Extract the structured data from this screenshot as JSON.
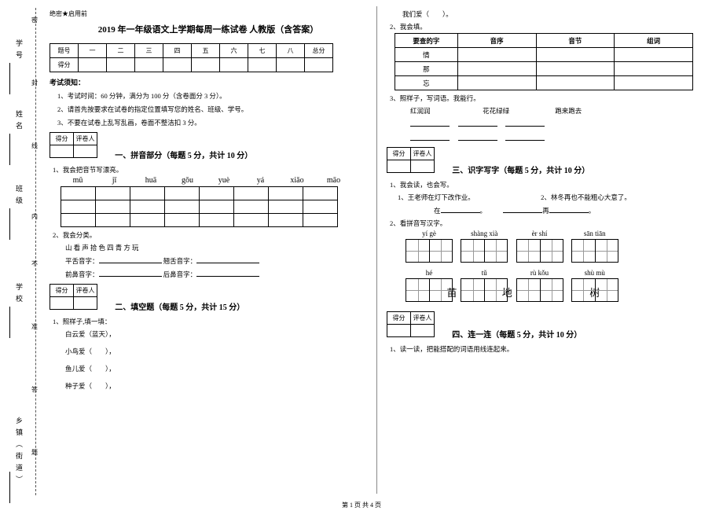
{
  "side": {
    "labels": [
      "学号",
      "姓名",
      "班级",
      "学校",
      "乡镇（街道）"
    ],
    "markers": [
      "密",
      "封",
      "线",
      "内",
      "不",
      "准",
      "答",
      "题"
    ]
  },
  "header_small": "绝密★启用前",
  "title": "2019 年一年级语文上学期每周一练试卷 人教版（含答案）",
  "score_table": {
    "row1": [
      "题号",
      "一",
      "二",
      "三",
      "四",
      "五",
      "六",
      "七",
      "八",
      "总分"
    ],
    "row2_label": "得分"
  },
  "notice_head": "考试须知：",
  "rules": [
    "1、考试时间：60 分钟，满分为 100 分（含卷面分 3 分）。",
    "2、请首先按要求在试卷的指定位置填写您的姓名、班级、学号。",
    "3、不要在试卷上乱写乱画，卷面不整洁扣 3 分。"
  ],
  "score_box_labels": [
    "得分",
    "评卷人"
  ],
  "sec1": {
    "title": "一、拼音部分（每题 5 分，共计 10 分）",
    "q1": "1、我会把音节写漂亮。",
    "pinyin": [
      "mǔ",
      "jī",
      "huā",
      "gǒu",
      "yuè",
      "yá",
      "xiǎo",
      "māo"
    ],
    "q2": "2、我会分类。",
    "q2_lines": [
      {
        "a": "山 看 声 拾 色 四 青 方 玩",
        "b": ""
      },
      {
        "a": "平舌音字：",
        "b": "翘舌音字："
      },
      {
        "a": "前鼻音字：",
        "b": "后鼻音字："
      }
    ]
  },
  "sec2": {
    "title": "二、填空题（每题 5 分，共计 15 分）",
    "q1": "1、照样子,填一填：",
    "items": [
      "白云爱（蓝天），",
      "小鸟爱（　　），",
      "鱼儿爱（　　），",
      "种子爱（　　），"
    ]
  },
  "sec2b": {
    "top1": "我们爱（　　）。",
    "top2": "2、我会填。",
    "table_head": [
      "要查的字",
      "音序",
      "音节",
      "组词"
    ],
    "table_rows": [
      "情",
      "那",
      "忘"
    ],
    "q3": "3、照样子，写词语。我能行。",
    "ex_row": [
      "红润润",
      "花花绿绿",
      "跑来跑去"
    ]
  },
  "sec3": {
    "title": "三、识字写字（每题 5 分，共计 10 分）",
    "q1": "1、我会读，也会写。",
    "line1a": "1、王老师在灯下改作业。",
    "line1b": "2、林冬再也不能粗心大意了。",
    "fill_a": "在",
    "fill_b": "再",
    "q2": "2、看拼音写汉字。",
    "boxes_r1": [
      {
        "py": "yí  gè",
        "ch": [
          "",
          ""
        ]
      },
      {
        "py": "shàng  xià",
        "ch": [
          "",
          ""
        ]
      },
      {
        "py": "èr  shí",
        "ch": [
          "",
          ""
        ]
      },
      {
        "py": "sān tiān",
        "ch": [
          "",
          ""
        ]
      }
    ],
    "boxes_r2": [
      {
        "py": "hé",
        "ch": [
          "",
          "苗"
        ]
      },
      {
        "py": "tǔ",
        "ch": [
          "",
          "地"
        ]
      },
      {
        "py": "rù  kǒu",
        "ch": [
          "",
          ""
        ]
      },
      {
        "py": "shù  mù",
        "ch": [
          "树",
          ""
        ]
      }
    ]
  },
  "sec4": {
    "title": "四、连一连（每题 5 分，共计 10 分）",
    "q1": "1、读一读，把能搭配的词语用线连起来。"
  },
  "footer": "第 1 页 共 4 页"
}
